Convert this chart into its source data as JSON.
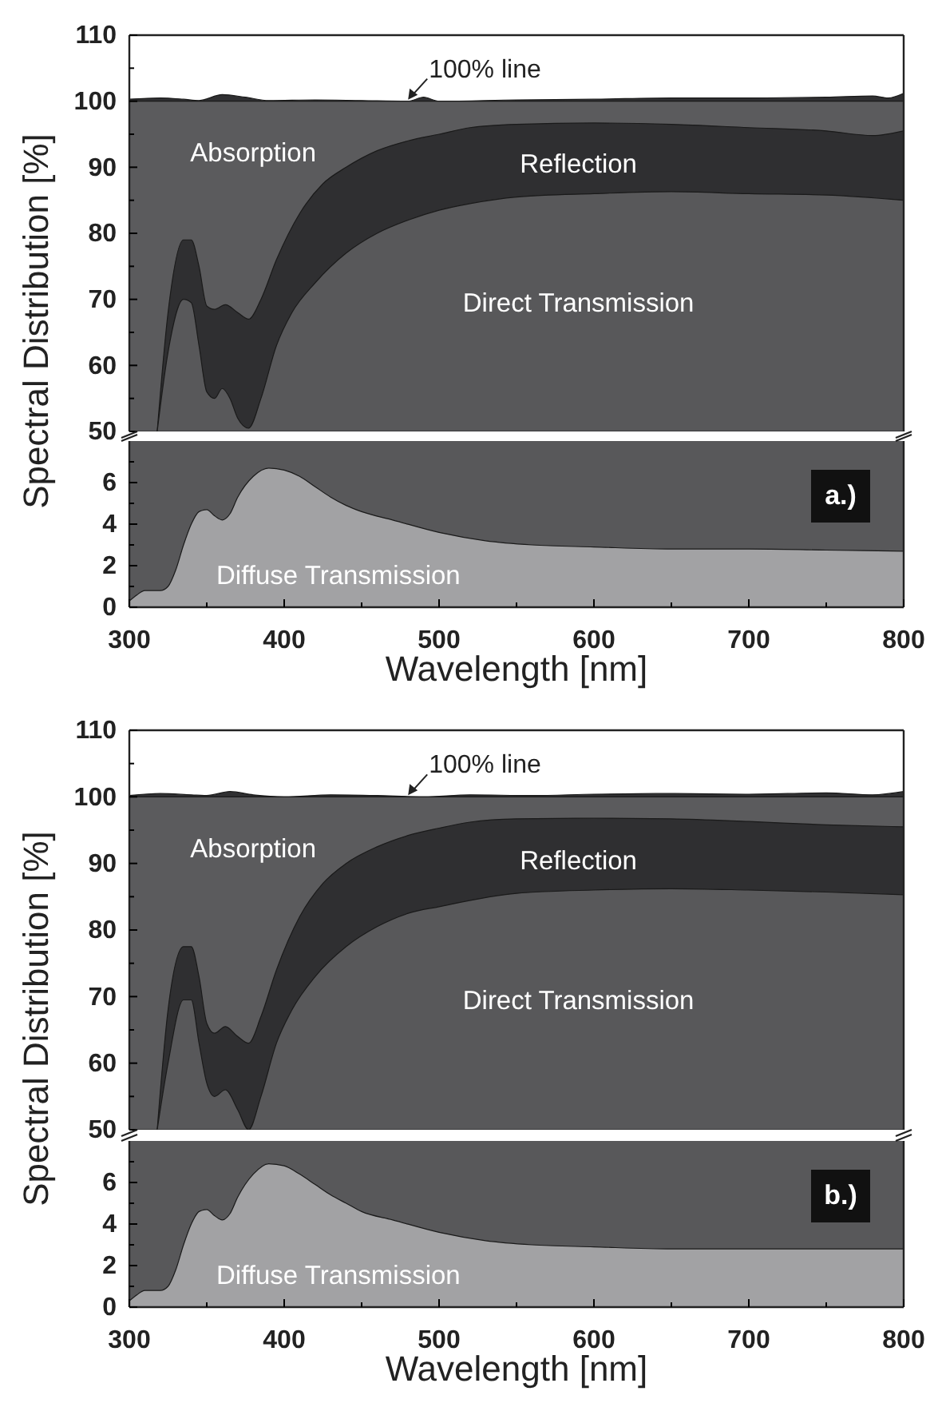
{
  "chart_data": [
    {
      "type": "area",
      "ylabel": "Spectral Distribution [%]",
      "xlim": [
        300,
        800
      ],
      "ylim": [
        50,
        110
      ],
      "yticks": [
        50,
        {
          "value": 55,
          "label": null
        },
        60,
        {
          "value": 65,
          "label": null
        },
        70,
        {
          "value": 75,
          "label": null
        },
        80,
        {
          "value": 85,
          "label": null
        },
        90,
        {
          "value": 95,
          "label": null
        },
        100,
        {
          "value": 105,
          "label": null
        },
        110
      ],
      "tick_labels": "y",
      "grid": false,
      "annotations": [
        {
          "text": "100% line",
          "x": 480,
          "y": 100
        }
      ],
      "series": [
        {
          "color": "#303032",
          "x": [
            300,
            320,
            335,
            345,
            360,
            375,
            390,
            420,
            450,
            480,
            490,
            500,
            550,
            600,
            650,
            700,
            750,
            780,
            790,
            800
          ],
          "values": [
            100.3,
            100.5,
            100.3,
            100.1,
            101,
            100.6,
            100.1,
            100.2,
            100.1,
            100,
            100.6,
            100,
            100.2,
            100.3,
            100.5,
            100.5,
            100.6,
            100.8,
            100.5,
            101.2
          ]
        },
        {
          "name": "Absorption",
          "color": "#5b5b5d",
          "x": [
            300,
            800
          ],
          "values": [
            100,
            100
          ]
        },
        {
          "name": "Reflection",
          "color": "#2f2f31",
          "x": [
            318,
            325,
            335,
            340,
            345,
            350,
            355,
            362,
            370,
            377,
            385,
            395,
            410,
            425,
            440,
            460,
            480,
            500,
            520,
            550,
            600,
            650,
            700,
            750,
            780,
            800
          ],
          "values": [
            50,
            68,
            79,
            79,
            75,
            69,
            68.5,
            69.2,
            68,
            67,
            70,
            76,
            83,
            87.5,
            90,
            92.5,
            94,
            95,
            96,
            96.5,
            96.7,
            96.5,
            96,
            95.5,
            94.8,
            95.5
          ]
        },
        {
          "name": "Direct Transmission",
          "color": "#58585a",
          "x": [
            318,
            325,
            335,
            340,
            345,
            350,
            355,
            360,
            365,
            370,
            377,
            385,
            395,
            405,
            420,
            440,
            460,
            480,
            500,
            520,
            550,
            600,
            650,
            700,
            750,
            800
          ],
          "values": [
            50,
            62,
            70,
            69.5,
            63,
            56,
            55,
            56.5,
            55,
            52,
            50.5,
            55,
            63,
            68,
            72.5,
            77,
            80,
            82,
            83.5,
            84.5,
            85.5,
            86,
            86.3,
            86,
            85.8,
            85
          ]
        }
      ]
    },
    {
      "type": "area",
      "xlabel": "Wavelength [nm]",
      "xlim": [
        300,
        800
      ],
      "xticks": [
        300,
        {
          "value": 350,
          "label": null
        },
        400,
        {
          "value": 450,
          "label": null
        },
        500,
        {
          "value": 550,
          "label": null
        },
        600,
        {
          "value": 650,
          "label": null
        },
        700,
        {
          "value": 750,
          "label": null
        },
        800
      ],
      "ylim": [
        0,
        8
      ],
      "yticks": [
        0,
        {
          "value": 1,
          "label": null
        },
        2,
        {
          "value": 3,
          "label": null
        },
        4,
        {
          "value": 5,
          "label": null
        },
        6,
        {
          "value": 7,
          "label": null
        }
      ],
      "grid": false,
      "annotations": [
        "a.)"
      ],
      "series": [
        {
          "name": "Diffuse Transmission",
          "color": "#a2a2a4",
          "x": [
            300,
            305,
            310,
            320,
            325,
            330,
            335,
            340,
            345,
            350,
            355,
            360,
            365,
            370,
            380,
            390,
            400,
            410,
            420,
            430,
            440,
            450,
            470,
            500,
            530,
            560,
            600,
            650,
            700,
            750,
            800
          ],
          "values": [
            0.3,
            0.6,
            0.8,
            0.8,
            1.0,
            1.8,
            3.0,
            4.0,
            4.6,
            4.7,
            4.4,
            4.2,
            4.5,
            5.3,
            6.3,
            6.7,
            6.6,
            6.3,
            5.8,
            5.3,
            4.9,
            4.6,
            4.2,
            3.6,
            3.2,
            3.0,
            2.9,
            2.8,
            2.8,
            2.75,
            2.7
          ]
        }
      ]
    },
    {
      "type": "area",
      "ylabel": "Spectral Distribution [%]",
      "xlim": [
        300,
        800
      ],
      "ylim": [
        50,
        110
      ],
      "yticks": [
        50,
        {
          "value": 55,
          "label": null
        },
        60,
        {
          "value": 65,
          "label": null
        },
        70,
        {
          "value": 75,
          "label": null
        },
        80,
        {
          "value": 85,
          "label": null
        },
        90,
        {
          "value": 95,
          "label": null
        },
        100,
        {
          "value": 105,
          "label": null
        },
        110
      ],
      "tick_labels": "y",
      "grid": false,
      "annotations": [
        {
          "text": "100% line",
          "x": 480,
          "y": 100
        }
      ],
      "series": [
        {
          "color": "#303032",
          "x": [
            300,
            320,
            340,
            350,
            365,
            380,
            400,
            430,
            460,
            490,
            520,
            560,
            600,
            650,
            700,
            750,
            780,
            800
          ],
          "values": [
            100.2,
            100.5,
            100.3,
            100.2,
            100.8,
            100.3,
            100,
            100.3,
            100.2,
            100,
            100.3,
            100.2,
            100.4,
            100.5,
            100.4,
            100.6,
            100.3,
            100.8
          ]
        },
        {
          "name": "Absorption",
          "color": "#5b5b5d",
          "x": [
            300,
            800
          ],
          "values": [
            100,
            100
          ]
        },
        {
          "name": "Reflection",
          "color": "#2f2f31",
          "x": [
            318,
            325,
            335,
            340,
            345,
            350,
            355,
            362,
            370,
            377,
            385,
            395,
            410,
            425,
            440,
            460,
            480,
            500,
            520,
            550,
            600,
            650,
            700,
            750,
            800
          ],
          "values": [
            50,
            68,
            77.5,
            77.5,
            73,
            66,
            64.5,
            65.5,
            64,
            63,
            67,
            74,
            82,
            87,
            90,
            92.5,
            94.2,
            95.3,
            96.2,
            96.7,
            96.8,
            96.7,
            96.3,
            95.8,
            95.5
          ]
        },
        {
          "name": "Direct Transmission",
          "color": "#58585a",
          "x": [
            318,
            325,
            335,
            340,
            345,
            350,
            355,
            362,
            370,
            377,
            385,
            395,
            405,
            420,
            440,
            460,
            480,
            500,
            550,
            600,
            650,
            700,
            750,
            800
          ],
          "values": [
            50,
            60,
            69.5,
            69.5,
            63,
            57,
            55,
            56,
            53,
            50,
            55,
            63,
            68,
            73,
            77.5,
            80.5,
            82.5,
            83.5,
            85.5,
            86,
            86.2,
            86,
            85.7,
            85.3
          ]
        }
      ]
    },
    {
      "type": "area",
      "xlabel": "Wavelength [nm]",
      "xlim": [
        300,
        800
      ],
      "xticks": [
        300,
        {
          "value": 350,
          "label": null
        },
        400,
        {
          "value": 450,
          "label": null
        },
        500,
        {
          "value": 550,
          "label": null
        },
        600,
        {
          "value": 650,
          "label": null
        },
        700,
        {
          "value": 750,
          "label": null
        },
        800
      ],
      "ylim": [
        0,
        8
      ],
      "yticks": [
        0,
        {
          "value": 1,
          "label": null
        },
        2,
        {
          "value": 3,
          "label": null
        },
        4,
        {
          "value": 5,
          "label": null
        },
        6,
        {
          "value": 7,
          "label": null
        }
      ],
      "grid": false,
      "annotations": [
        "b.)"
      ],
      "series": [
        {
          "name": "Diffuse Transmission",
          "color": "#a2a2a4",
          "x": [
            300,
            305,
            310,
            320,
            325,
            330,
            335,
            340,
            345,
            350,
            355,
            360,
            365,
            370,
            380,
            390,
            400,
            410,
            420,
            430,
            440,
            450,
            470,
            500,
            530,
            560,
            600,
            650,
            700,
            750,
            800
          ],
          "values": [
            0.3,
            0.6,
            0.8,
            0.8,
            1.0,
            1.8,
            3.0,
            4.0,
            4.6,
            4.7,
            4.4,
            4.2,
            4.5,
            5.3,
            6.4,
            6.9,
            6.8,
            6.4,
            5.9,
            5.4,
            5.0,
            4.6,
            4.2,
            3.6,
            3.2,
            3.0,
            2.9,
            2.8,
            2.8,
            2.8,
            2.8
          ]
        }
      ]
    }
  ]
}
